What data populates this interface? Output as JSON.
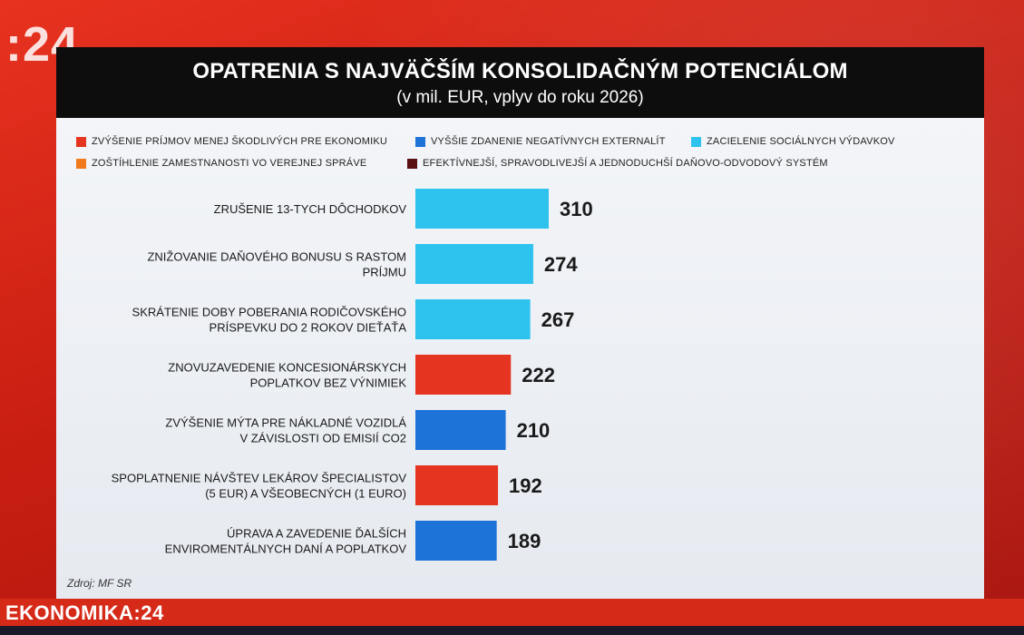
{
  "logo": ":24",
  "brand": "EKONOMIKA:24",
  "source": "Zdroj: MF SR",
  "chart_data": {
    "type": "bar",
    "orientation": "horizontal",
    "title": "OPATRENIA S NAJVÄČŠÍM KONSOLIDAČNÝM POTENCIÁLOM",
    "subtitle": "(v mil. EUR, vplyv do roku 2026)",
    "legend_placement": "top",
    "legend": [
      {
        "label": "ZVÝŠENIE PRÍJMOV MENEJ ŠKODLIVÝCH PRE EKONOMIKU",
        "color": "#e5341f"
      },
      {
        "label": "VYŠŠIE ZDANENIE NEGATÍVNYCH EXTERNALÍT",
        "color": "#1e73d8"
      },
      {
        "label": "ZACIELENIE SOCIÁLNYCH VÝDAVKOV",
        "color": "#2ec3ef"
      },
      {
        "label": "ZOŠTÍHLENIE ZAMESTNANOSTI VO VEREJNEJ SPRÁVE",
        "color": "#f07a1c"
      },
      {
        "label": "EFEKTÍVNEJŠÍ, SPRAVODLIVEJŠÍ A JEDNODUCHŠÍ DAŇOVO-ODVODOVÝ SYSTÉM",
        "color": "#5a0f10"
      }
    ],
    "categories": [
      [
        "ZRUŠENIE 13-TYCH DÔCHODKOV"
      ],
      [
        "ZNIŽOVANIE DAŇOVÉHO BONUSU S RASTOM",
        "PRÍJMU"
      ],
      [
        "SKRÁTENIE DOBY POBERANIA RODIČOVSKÉHO",
        "PRÍSPEVKU DO 2 ROKOV DIEŤAŤA"
      ],
      [
        "ZNOVUZAVEDENIE KONCESIONÁRSKYCH",
        "POPLATKOV BEZ VÝNIMIEK"
      ],
      [
        "ZVÝŠENIE MÝTA PRE NÁKLADNÉ VOZIDLÁ",
        "V ZÁVISLOSTI OD EMISIÍ CO2"
      ],
      [
        "SPOPLATNENIE NÁVŠTEV LEKÁROV ŠPECIALISTOV",
        "(5 EUR) A VŠEOBECNÝCH (1 EURO)"
      ],
      [
        "ÚPRAVA A ZAVEDENIE ĎALŠÍCH",
        "ENVIROMENTÁLNYCH DANÍ A POPLATKOV"
      ]
    ],
    "values": [
      310,
      274,
      267,
      222,
      210,
      192,
      189
    ],
    "value_labels": [
      "310",
      "274",
      "267",
      "222",
      "210",
      "192",
      "189"
    ],
    "bar_groups": [
      2,
      2,
      2,
      0,
      1,
      0,
      1
    ],
    "xlim": [
      0,
      310
    ],
    "grid": false
  }
}
